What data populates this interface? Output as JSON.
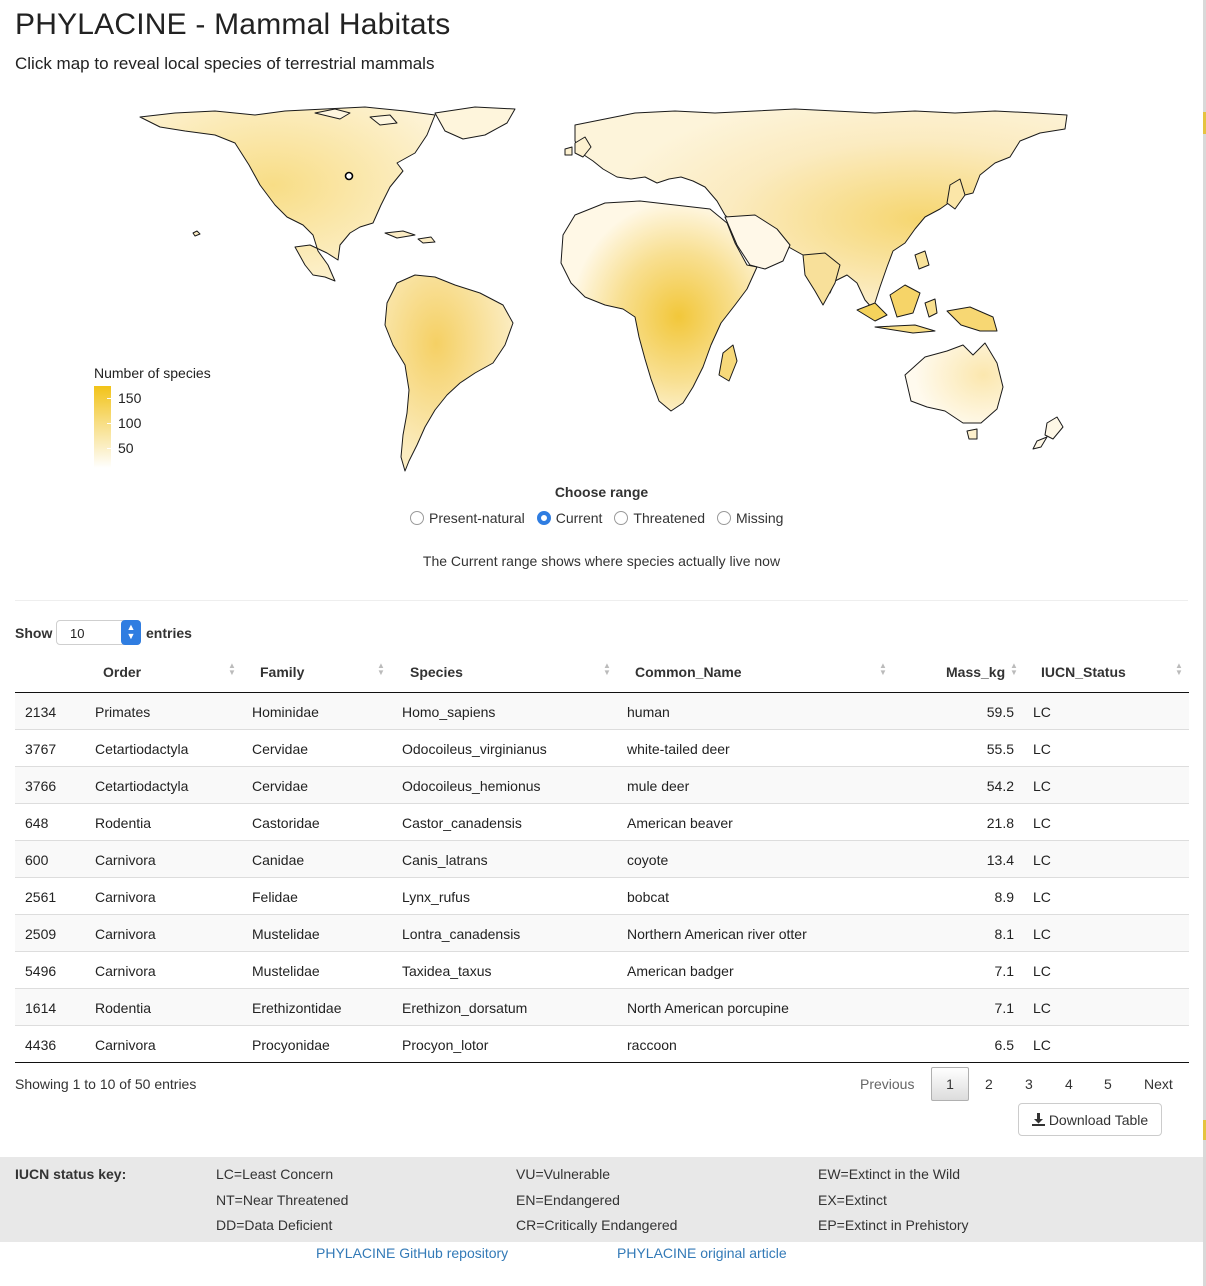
{
  "header": {
    "title": "PHYLACINE - Mammal Habitats",
    "subtitle": "Click map to reveal local species of terrestrial mammals"
  },
  "map": {
    "legend": {
      "title": "Number of species",
      "labels": [
        "150",
        "100",
        "50"
      ]
    },
    "colors": {
      "high": "#f2c318",
      "low": "#ffffff",
      "outline": "#1a1a1a"
    }
  },
  "range": {
    "title": "Choose range",
    "options": [
      "Present-natural",
      "Current",
      "Threatened",
      "Missing"
    ],
    "selected": "Current",
    "description": "The Current range shows where species actually live now"
  },
  "table": {
    "show_label": "Show",
    "entries_label": "entries",
    "page_length": "10",
    "columns": [
      "Order",
      "Family",
      "Species",
      "Common_Name",
      "Mass_kg",
      "IUCN_Status"
    ],
    "rows": [
      [
        "2134",
        "Primates",
        "Hominidae",
        "Homo_sapiens",
        "human",
        "59.5",
        "LC"
      ],
      [
        "3767",
        "Cetartiodactyla",
        "Cervidae",
        "Odocoileus_virginianus",
        "white-tailed deer",
        "55.5",
        "LC"
      ],
      [
        "3766",
        "Cetartiodactyla",
        "Cervidae",
        "Odocoileus_hemionus",
        "mule deer",
        "54.2",
        "LC"
      ],
      [
        "648",
        "Rodentia",
        "Castoridae",
        "Castor_canadensis",
        "American beaver",
        "21.8",
        "LC"
      ],
      [
        "600",
        "Carnivora",
        "Canidae",
        "Canis_latrans",
        "coyote",
        "13.4",
        "LC"
      ],
      [
        "2561",
        "Carnivora",
        "Felidae",
        "Lynx_rufus",
        "bobcat",
        "8.9",
        "LC"
      ],
      [
        "2509",
        "Carnivora",
        "Mustelidae",
        "Lontra_canadensis",
        "Northern American river otter",
        "8.1",
        "LC"
      ],
      [
        "5496",
        "Carnivora",
        "Mustelidae",
        "Taxidea_taxus",
        "American badger",
        "7.1",
        "LC"
      ],
      [
        "1614",
        "Rodentia",
        "Erethizontidae",
        "Erethizon_dorsatum",
        "North American porcupine",
        "7.1",
        "LC"
      ],
      [
        "4436",
        "Carnivora",
        "Procyonidae",
        "Procyon_lotor",
        "raccoon",
        "6.5",
        "LC"
      ]
    ],
    "info": "Showing 1 to 10 of 50 entries",
    "pagination": {
      "previous": "Previous",
      "pages": [
        "1",
        "2",
        "3",
        "4",
        "5"
      ],
      "current": "1",
      "next": "Next"
    },
    "download_label": "Download Table"
  },
  "iucn_key": {
    "title": "IUCN status key:",
    "columns": [
      [
        "LC=Least Concern",
        "NT=Near Threatened",
        "DD=Data Deficient"
      ],
      [
        "VU=Vulnerable",
        "EN=Endangered",
        "CR=Critically Endangered"
      ],
      [
        "EW=Extinct in the Wild",
        "EX=Extinct",
        "EP=Extinct in Prehistory"
      ]
    ]
  },
  "links": {
    "github": "PHYLACINE GitHub repository",
    "article": "PHYLACINE original article"
  }
}
